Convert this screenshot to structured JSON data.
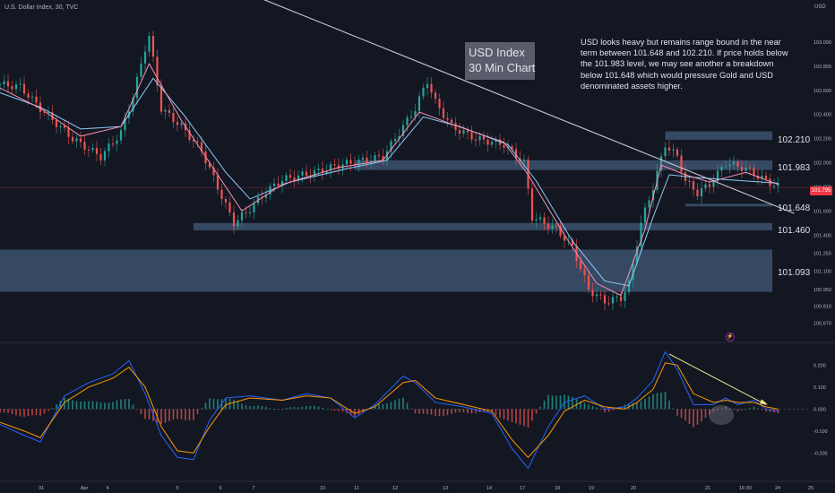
{
  "header": {
    "symbol_line": "U.S. Dollar Index, 30, TVC",
    "currency": "USD"
  },
  "annotations": {
    "title_line1": "USD Index",
    "title_line2": "30 Min Chart",
    "note": "USD looks heavy but remains range bound in the near term between 101.648 and 102.210. If price holds below the 101.983 level, we may see another a breakdown below 101.648 which would pressure Gold and USD denominated assets higher."
  },
  "levels": {
    "l1": "102.210",
    "l2": "101.983",
    "l3": "101.648",
    "l4": "101.460",
    "l5": "101.093"
  },
  "last_price": "101.795",
  "alert_icon": "lightning-icon",
  "colors": {
    "background": "#131722",
    "candle_up": "#26a69a",
    "candle_down": "#ef5350",
    "ma_fast": "#f48fb1",
    "ma_slow": "#90caf9",
    "zone": "#4f6a8f",
    "trendline": "#c8cbd3",
    "macd": "#2962ff",
    "signal": "#ff9800",
    "divergence": "#f0e68c"
  },
  "chart_data": [
    {
      "type": "candlestick",
      "title": "U.S. Dollar Index, 30, TVC",
      "y_axis_ticks": [
        "103.000",
        "102.800",
        "102.600",
        "102.400",
        "102.200",
        "102.000",
        "101.800",
        "101.600",
        "101.400",
        "101.250",
        "101.100",
        "100.950",
        "100.810",
        "100.670"
      ],
      "x_axis_ticks": [
        "31",
        "Apr",
        "4",
        "5",
        "6",
        "7",
        "10",
        "11",
        "12",
        "13",
        "14",
        "17",
        "18",
        "19",
        "20",
        "21",
        "16:30",
        "24",
        "25"
      ],
      "price_path": [
        [
          0,
          102.65
        ],
        [
          5,
          102.63
        ],
        [
          10,
          102.45
        ],
        [
          18,
          102.2
        ],
        [
          25,
          102.05
        ],
        [
          30,
          102.25
        ],
        [
          33,
          102.55
        ],
        [
          36,
          102.95
        ],
        [
          37,
          103.05
        ],
        [
          40,
          102.45
        ],
        [
          45,
          102.3
        ],
        [
          50,
          102.1
        ],
        [
          55,
          101.72
        ],
        [
          58,
          101.5
        ],
        [
          62,
          101.62
        ],
        [
          66,
          101.76
        ],
        [
          70,
          101.86
        ],
        [
          78,
          101.92
        ],
        [
          84,
          101.98
        ],
        [
          95,
          102.05
        ],
        [
          103,
          102.45
        ],
        [
          106,
          102.68
        ],
        [
          108,
          102.5
        ],
        [
          112,
          102.3
        ],
        [
          118,
          102.2
        ],
        [
          125,
          102.15
        ],
        [
          130,
          102.0
        ],
        [
          132,
          101.55
        ],
        [
          138,
          101.45
        ],
        [
          142,
          101.3
        ],
        [
          146,
          100.95
        ],
        [
          150,
          100.85
        ],
        [
          154,
          100.88
        ],
        [
          156,
          101.0
        ],
        [
          159,
          101.5
        ],
        [
          162,
          101.8
        ],
        [
          165,
          102.15
        ],
        [
          168,
          102.05
        ],
        [
          170,
          101.85
        ],
        [
          173,
          101.75
        ],
        [
          176,
          101.82
        ],
        [
          180,
          102.0
        ],
        [
          185,
          101.95
        ],
        [
          190,
          101.85
        ],
        [
          193,
          101.8
        ]
      ],
      "ma_fast": [
        [
          0,
          102.62
        ],
        [
          10,
          102.45
        ],
        [
          20,
          102.22
        ],
        [
          30,
          102.3
        ],
        [
          37,
          102.82
        ],
        [
          45,
          102.35
        ],
        [
          55,
          101.85
        ],
        [
          60,
          101.6
        ],
        [
          70,
          101.82
        ],
        [
          84,
          101.96
        ],
        [
          95,
          102.02
        ],
        [
          104,
          102.42
        ],
        [
          112,
          102.32
        ],
        [
          125,
          102.17
        ],
        [
          131,
          101.9
        ],
        [
          140,
          101.4
        ],
        [
          148,
          101.0
        ],
        [
          154,
          100.9
        ],
        [
          160,
          101.45
        ],
        [
          164,
          101.98
        ],
        [
          170,
          101.9
        ],
        [
          176,
          101.84
        ],
        [
          185,
          101.92
        ],
        [
          193,
          101.82
        ]
      ],
      "ma_slow": [
        [
          0,
          102.58
        ],
        [
          10,
          102.46
        ],
        [
          20,
          102.28
        ],
        [
          30,
          102.3
        ],
        [
          38,
          102.7
        ],
        [
          46,
          102.38
        ],
        [
          56,
          101.92
        ],
        [
          62,
          101.7
        ],
        [
          72,
          101.84
        ],
        [
          86,
          101.95
        ],
        [
          96,
          102.02
        ],
        [
          105,
          102.38
        ],
        [
          114,
          102.3
        ],
        [
          126,
          102.15
        ],
        [
          133,
          101.85
        ],
        [
          142,
          101.35
        ],
        [
          150,
          101.02
        ],
        [
          156,
          100.98
        ],
        [
          162,
          101.55
        ],
        [
          166,
          101.9
        ],
        [
          172,
          101.88
        ],
        [
          180,
          101.86
        ],
        [
          193,
          101.83
        ]
      ],
      "zones": [
        {
          "label": "102.210",
          "from": 102.19,
          "to": 102.26,
          "x_start": 165
        },
        {
          "label": "101.983",
          "from": 101.94,
          "to": 102.02,
          "x_start": 88
        },
        {
          "label": "101.648",
          "from": 101.64,
          "to": 101.66,
          "x_start": 170
        },
        {
          "label": "101.460",
          "from": 101.44,
          "to": 101.5,
          "x_start": 48
        },
        {
          "label": "101.093",
          "from": 100.93,
          "to": 101.28,
          "x_start": 0
        }
      ],
      "trendline": [
        [
          47,
          103.6
        ],
        [
          197,
          101.58
        ]
      ],
      "last_price": 101.795
    },
    {
      "type": "line",
      "title": "MACD",
      "y_axis_ticks": [
        "0.200",
        "0.100",
        "0.000",
        "-0.100",
        "-0.200"
      ],
      "series": [
        {
          "values": [
            [
              0,
              -0.07
            ],
            [
              6,
              -0.12
            ],
            [
              10,
              -0.15
            ],
            [
              16,
              0.06
            ],
            [
              22,
              0.12
            ],
            [
              28,
              0.16
            ],
            [
              32,
              0.22
            ],
            [
              36,
              0.07
            ],
            [
              40,
              -0.12
            ],
            [
              44,
              -0.22
            ],
            [
              48,
              -0.23
            ],
            [
              52,
              -0.05
            ],
            [
              56,
              0.05
            ],
            [
              62,
              0.06
            ],
            [
              70,
              0.04
            ],
            [
              76,
              0.07
            ],
            [
              82,
              0.05
            ],
            [
              88,
              -0.04
            ],
            [
              93,
              0.02
            ],
            [
              100,
              0.15
            ],
            [
              103,
              0.12
            ],
            [
              108,
              0.03
            ],
            [
              115,
              0.01
            ],
            [
              122,
              -0.02
            ],
            [
              127,
              -0.18
            ],
            [
              131,
              -0.27
            ],
            [
              136,
              -0.08
            ],
            [
              140,
              0.03
            ],
            [
              145,
              0.06
            ],
            [
              150,
              0.0
            ],
            [
              155,
              0.01
            ],
            [
              158,
              0.05
            ],
            [
              162,
              0.13
            ],
            [
              165,
              0.26
            ],
            [
              168,
              0.18
            ],
            [
              172,
              0.02
            ],
            [
              177,
              0.02
            ],
            [
              180,
              0.05
            ],
            [
              183,
              0.02
            ],
            [
              187,
              0.04
            ],
            [
              190,
              0.0
            ],
            [
              193,
              -0.01
            ]
          ]
        },
        {
          "values": [
            [
              0,
              -0.06
            ],
            [
              6,
              -0.1
            ],
            [
              10,
              -0.13
            ],
            [
              16,
              0.03
            ],
            [
              22,
              0.1
            ],
            [
              28,
              0.14
            ],
            [
              32,
              0.19
            ],
            [
              36,
              0.1
            ],
            [
              40,
              -0.08
            ],
            [
              44,
              -0.19
            ],
            [
              48,
              -0.2
            ],
            [
              52,
              -0.08
            ],
            [
              56,
              0.02
            ],
            [
              62,
              0.05
            ],
            [
              70,
              0.04
            ],
            [
              76,
              0.06
            ],
            [
              82,
              0.05
            ],
            [
              88,
              -0.02
            ],
            [
              93,
              0.01
            ],
            [
              100,
              0.12
            ],
            [
              103,
              0.13
            ],
            [
              108,
              0.05
            ],
            [
              115,
              0.02
            ],
            [
              122,
              -0.01
            ],
            [
              127,
              -0.14
            ],
            [
              131,
              -0.22
            ],
            [
              136,
              -0.12
            ],
            [
              140,
              -0.01
            ],
            [
              145,
              0.04
            ],
            [
              150,
              0.01
            ],
            [
              155,
              0.0
            ],
            [
              158,
              0.03
            ],
            [
              162,
              0.09
            ],
            [
              165,
              0.21
            ],
            [
              168,
              0.2
            ],
            [
              172,
              0.07
            ],
            [
              177,
              0.03
            ],
            [
              180,
              0.04
            ],
            [
              183,
              0.03
            ],
            [
              187,
              0.03
            ],
            [
              190,
              0.01
            ],
            [
              193,
              0.0
            ]
          ]
        }
      ],
      "divergence_line": [
        [
          166,
          0.25
        ],
        [
          190,
          0.02
        ]
      ]
    }
  ]
}
